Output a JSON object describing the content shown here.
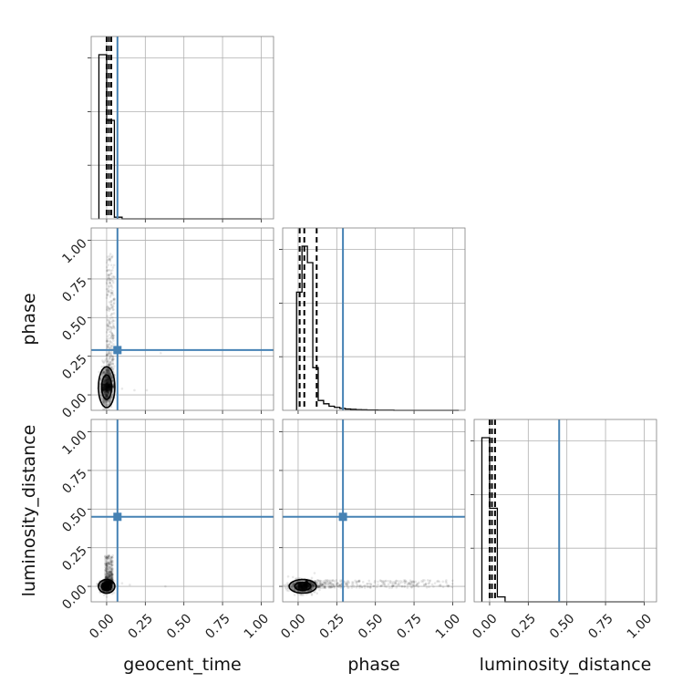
{
  "chart_data": {
    "type": "scatter",
    "kind": "corner-plot",
    "parameters": [
      "geocent_time",
      "phase",
      "luminosity_distance"
    ],
    "axis_range": [
      -0.1,
      1.08
    ],
    "ticks": [
      0.0,
      0.25,
      0.5,
      0.75,
      1.0
    ],
    "tick_labels": [
      "0.00",
      "0.25",
      "0.50",
      "0.75",
      "1.00"
    ],
    "y_axis_labels": [
      "phase",
      "luminosity_distance"
    ],
    "grid": true,
    "truths": {
      "geocent_time": 0.07,
      "phase": 0.29,
      "luminosity_distance": 0.45
    },
    "quantiles": {
      "geocent_time": [
        0.0,
        0.015,
        0.03
      ],
      "phase": [
        0.01,
        0.04,
        0.12
      ],
      "luminosity_distance": [
        0.0,
        0.015,
        0.035
      ]
    },
    "histograms": {
      "geocent_time": {
        "bin_width": 0.05,
        "edges_start": -0.05,
        "values": [
          1.0,
          0.6,
          0.01,
          0,
          0,
          0,
          0,
          0,
          0,
          0,
          0,
          0,
          0,
          0,
          0,
          0,
          0,
          0,
          0,
          0,
          0
        ]
      },
      "phase": {
        "bin_width": 0.035,
        "edges_start": -0.01,
        "values": [
          0.72,
          1.0,
          0.9,
          0.26,
          0.06,
          0.04,
          0.025,
          0.018,
          0.012,
          0.008,
          0.006,
          0.004,
          0.003,
          0.002,
          0.002,
          0.001,
          0.001,
          0.001,
          0,
          0,
          0,
          0,
          0,
          0,
          0,
          0,
          0,
          0,
          0,
          0
        ]
      },
      "luminosity_distance": {
        "bin_width": 0.05,
        "edges_start": -0.05,
        "values": [
          1.0,
          0.57,
          0.03,
          0,
          0,
          0,
          0,
          0,
          0,
          0,
          0,
          0,
          0,
          0,
          0,
          0,
          0,
          0,
          0,
          0,
          0
        ]
      }
    },
    "pairs": [
      {
        "x": "geocent_time",
        "y": "phase",
        "center": [
          0.0,
          0.05
        ],
        "spread": [
          0.018,
          0.06
        ],
        "tail": {
          "x_range": [
            0.0,
            0.05
          ],
          "y_range": [
            0.05,
            0.92
          ]
        },
        "outliers": [
          [
            0.1,
            0.04
          ],
          [
            0.18,
            0.03
          ],
          [
            0.35,
            0.27
          ],
          [
            0.26,
            0.03
          ]
        ]
      },
      {
        "x": "geocent_time",
        "y": "luminosity_distance",
        "center": [
          0.0,
          0.0
        ],
        "spread": [
          0.02,
          0.02
        ],
        "tail": {
          "x_range": [
            -0.01,
            0.04
          ],
          "y_range": [
            0.02,
            0.2
          ]
        },
        "outliers": [
          [
            0.1,
            0.02
          ],
          [
            0.15,
            0.01
          ],
          [
            0.38,
            0.0
          ]
        ]
      },
      {
        "x": "phase",
        "y": "luminosity_distance",
        "center": [
          0.03,
          0.0
        ],
        "spread": [
          0.04,
          0.02
        ],
        "tail": {
          "x_range": [
            0.05,
            1.0
          ],
          "y_range": [
            -0.01,
            0.04
          ]
        },
        "outliers": [
          [
            0.6,
            0.03
          ],
          [
            0.75,
            0.0
          ],
          [
            0.92,
            0.01
          ]
        ]
      }
    ]
  }
}
